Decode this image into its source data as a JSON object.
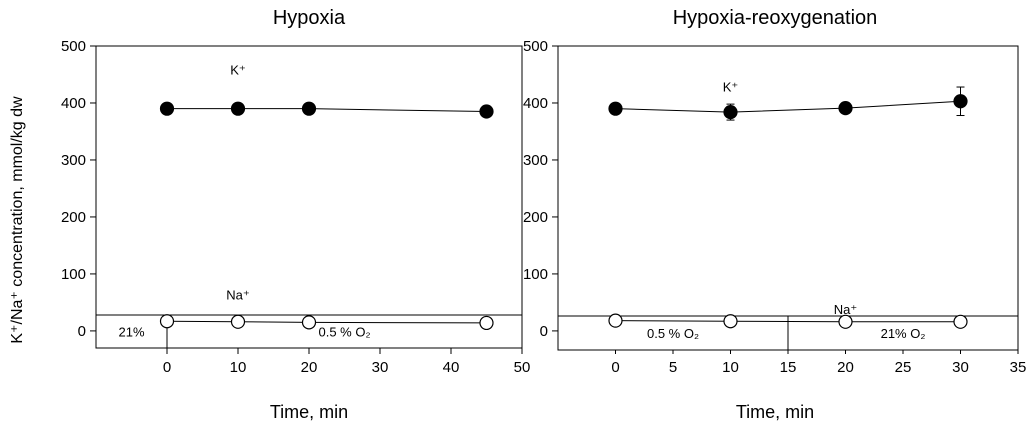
{
  "ylabel": "K⁺/Na⁺ concentration, mmol/kg dw",
  "chart_data": [
    {
      "type": "scatter",
      "title": "Hypoxia",
      "xlabel": "Time, min",
      "xlim": [
        -10,
        50
      ],
      "ylim": [
        -30,
        500
      ],
      "xticks": [
        "0",
        "10",
        "20",
        "30",
        "40",
        "50"
      ],
      "xtick_values": [
        0,
        10,
        20,
        30,
        40,
        50
      ],
      "yticks": [
        "0",
        "100",
        "200",
        "300",
        "400",
        "500"
      ],
      "ytick_values": [
        0,
        100,
        200,
        300,
        400,
        500
      ],
      "series": [
        {
          "name": "K⁺",
          "marker": "filled-circle",
          "x": [
            0,
            10,
            20,
            45
          ],
          "y": [
            390,
            390,
            390,
            385
          ],
          "err": [
            0,
            0,
            0,
            0
          ]
        },
        {
          "name": "Na⁺",
          "marker": "open-circle",
          "x": [
            0,
            10,
            20,
            45
          ],
          "y": [
            17,
            16,
            15,
            14
          ],
          "err": [
            0,
            0,
            0,
            0
          ]
        }
      ],
      "annotations": {
        "k_label": "K⁺",
        "na_label": "Na⁺"
      },
      "conditions": [
        {
          "label": "21%",
          "from": -10,
          "to": 0
        },
        {
          "label": "0.5 % O₂",
          "from": 0,
          "to": 50
        }
      ]
    },
    {
      "type": "scatter",
      "title": "Hypoxia-reoxygenation",
      "xlabel": "Time, min",
      "xlim": [
        -5,
        35
      ],
      "ylim": [
        -30,
        500
      ],
      "xticks": [
        "0",
        "5",
        "10",
        "15",
        "20",
        "25",
        "30",
        "35"
      ],
      "xtick_values": [
        0,
        5,
        10,
        15,
        20,
        25,
        30,
        35
      ],
      "yticks": [
        "0",
        "100",
        "200",
        "300",
        "400",
        "500"
      ],
      "ytick_values": [
        0,
        100,
        200,
        300,
        400,
        500
      ],
      "series": [
        {
          "name": "K⁺",
          "marker": "filled-circle",
          "x": [
            0,
            10,
            20,
            30
          ],
          "y": [
            390,
            384,
            391,
            403
          ],
          "err": [
            0,
            14,
            0,
            25
          ]
        },
        {
          "name": "Na⁺",
          "marker": "open-circle",
          "x": [
            0,
            10,
            20,
            30
          ],
          "y": [
            18,
            17,
            16,
            16
          ],
          "err": [
            0,
            0,
            0,
            0
          ]
        }
      ],
      "annotations": {
        "k_label": "K⁺",
        "na_label": "Na⁺"
      },
      "conditions": [
        {
          "label": "0.5 % O₂",
          "from": -5,
          "to": 15
        },
        {
          "label": "21% O₂",
          "from": 15,
          "to": 35
        }
      ]
    }
  ]
}
